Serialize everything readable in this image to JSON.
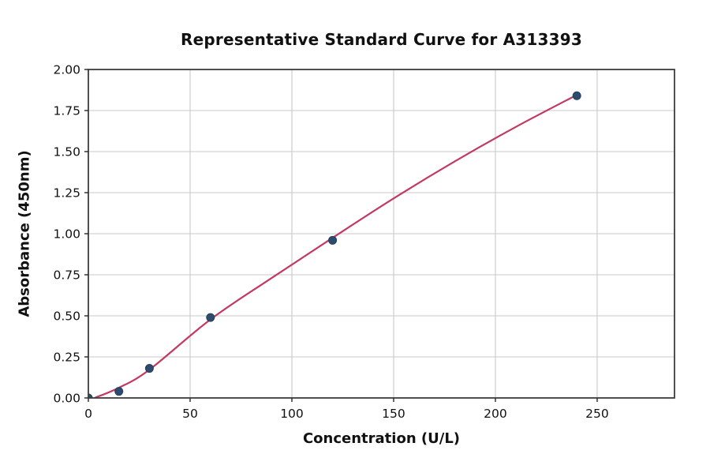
{
  "title": "Representative Standard Curve for A313393",
  "chart_data": {
    "type": "scatter",
    "title": "Representative Standard Curve for A313393",
    "xlabel": "Concentration (U/L)",
    "ylabel": "Absorbance (450nm)",
    "xlim": [
      0,
      288
    ],
    "ylim": [
      0,
      2.0
    ],
    "grid": true,
    "legend": "none",
    "x_ticks": [
      0,
      50,
      100,
      150,
      200,
      250
    ],
    "x_tick_labels": [
      "0",
      "50",
      "100",
      "150",
      "200",
      "250"
    ],
    "y_ticks": [
      0.0,
      0.25,
      0.5,
      0.75,
      1.0,
      1.25,
      1.5,
      1.75,
      2.0
    ],
    "y_tick_labels": [
      "0.00",
      "0.25",
      "0.50",
      "0.75",
      "1.00",
      "1.25",
      "1.50",
      "1.75",
      "2.00"
    ],
    "points": [
      {
        "x": 0,
        "y": 0.0
      },
      {
        "x": 15,
        "y": 0.04
      },
      {
        "x": 30,
        "y": 0.18
      },
      {
        "x": 60,
        "y": 0.49
      },
      {
        "x": 120,
        "y": 0.96
      },
      {
        "x": 240,
        "y": 1.84
      }
    ],
    "fit_curve": [
      {
        "x": 3,
        "y": 0.0
      },
      {
        "x": 15,
        "y": 0.062
      },
      {
        "x": 30,
        "y": 0.172
      },
      {
        "x": 60,
        "y": 0.478
      },
      {
        "x": 90,
        "y": 0.73
      },
      {
        "x": 120,
        "y": 0.975
      },
      {
        "x": 150,
        "y": 1.215
      },
      {
        "x": 180,
        "y": 1.44
      },
      {
        "x": 210,
        "y": 1.65
      },
      {
        "x": 240,
        "y": 1.845
      }
    ],
    "colors": {
      "point_fill": "#2e4b6d",
      "point_edge": "#24405e",
      "curve": "#c23a62",
      "grid": "#c9c9c9",
      "spine": "#3d3d3d",
      "tick": "#333333",
      "text": "#111111",
      "background": "#ffffff"
    }
  }
}
